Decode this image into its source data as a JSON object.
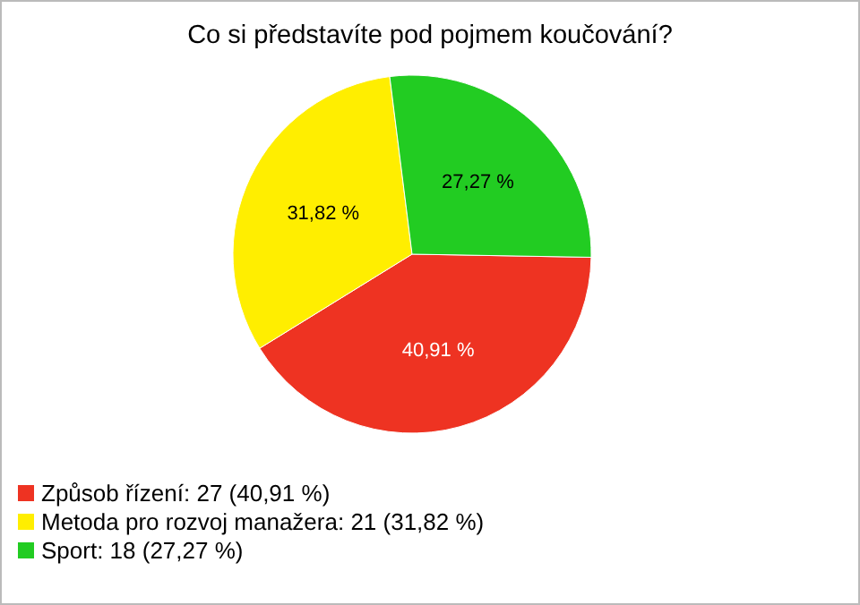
{
  "chart_data": {
    "type": "pie",
    "title": "Co si představíte pod pojmem koučování?",
    "categories": [
      "Způsob řízení: 27 (40,91 %)",
      "Metoda pro rozvoj manažera: 21 (31,82 %)",
      "Sport: 18 (27,27 %)"
    ],
    "values": [
      40.91,
      31.82,
      27.27
    ],
    "value_labels": [
      "40,91 %",
      "31,82 %",
      "27,27 %"
    ],
    "colors": [
      "#ee3322",
      "#ffee00",
      "#22cc22"
    ],
    "legend": "bottom left"
  }
}
